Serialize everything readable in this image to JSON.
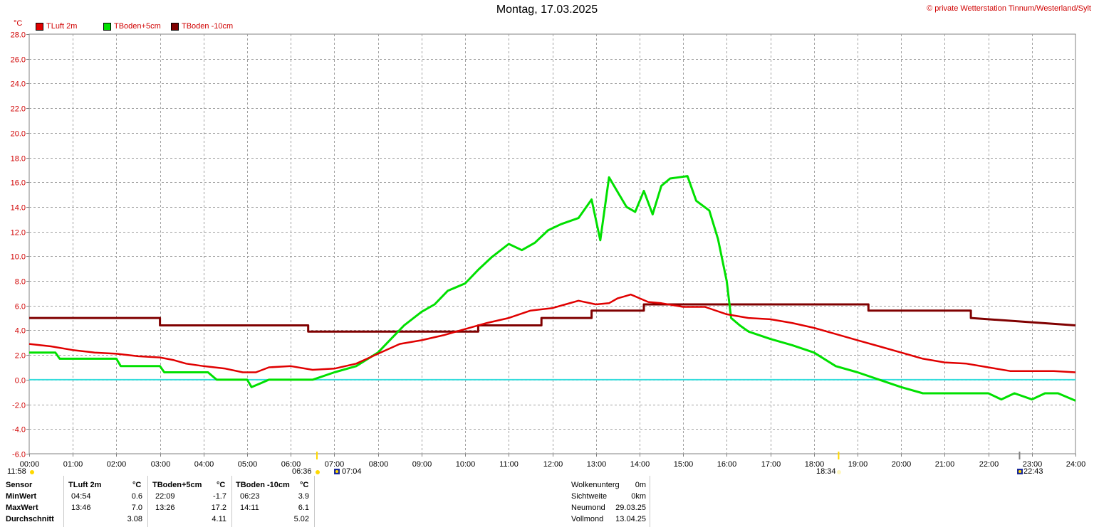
{
  "header": {
    "title": "Montag, 17.03.2025",
    "copyright": "© private Wetterstation Tinnum/Westerland/Sylt",
    "unit": "°C"
  },
  "legend": [
    {
      "label": "TLuft 2m",
      "color": "#e00000"
    },
    {
      "label": "TBoden+5cm",
      "color": "#00e000"
    },
    {
      "label": "TBoden -10cm",
      "color": "#800000"
    }
  ],
  "sun_markers": {
    "moonset": "11:58",
    "sunrise": "06:36",
    "civil_dawn": "07:04",
    "sunset": "18:34",
    "moonrise": "22:43"
  },
  "stats": {
    "sensor_header": "Sensor",
    "row_labels": [
      "MinWert",
      "MaxWert",
      "Durchschnitt"
    ],
    "columns": [
      {
        "name": "TLuft 2m",
        "unit": "°C",
        "min_time": "04:54",
        "min_val": "0.6",
        "max_time": "13:46",
        "max_val": "7.0",
        "avg": "3.08"
      },
      {
        "name": "TBoden+5cm",
        "unit": "°C",
        "min_time": "22:09",
        "min_val": "-1.7",
        "max_time": "13:26",
        "max_val": "17.2",
        "avg": "4.11"
      },
      {
        "name": "TBoden -10cm",
        "unit": "°C",
        "min_time": "06:23",
        "min_val": "3.9",
        "max_time": "14:11",
        "max_val": "6.1",
        "avg": "5.02"
      }
    ],
    "astro": [
      {
        "label": "Wolkenunterg",
        "value": "0m"
      },
      {
        "label": "Sichtweite",
        "value": "0km"
      },
      {
        "label": "Neumond",
        "value": "29.03.25"
      },
      {
        "label": "Vollmond",
        "value": "13.04.25"
      }
    ]
  },
  "chart_data": {
    "type": "line",
    "title": "Montag, 17.03.2025",
    "ylabel": "°C",
    "ylim": [
      -6,
      28
    ],
    "xlim": [
      0,
      24
    ],
    "grid": true,
    "legend_position": "top-left",
    "yticks": [
      "28.0",
      "26.0",
      "24.0",
      "22.0",
      "20.0",
      "18.0",
      "16.0",
      "14.0",
      "12.0",
      "10.0",
      "8.0",
      "6.0",
      "4.0",
      "2.0",
      "0.0",
      "-2.0",
      "-4.0",
      "-6.0"
    ],
    "xticks": [
      "00:00",
      "01:00",
      "02:00",
      "03:00",
      "04:00",
      "05:00",
      "06:00",
      "07:00",
      "08:00",
      "09:00",
      "10:00",
      "11:00",
      "12:00",
      "13:00",
      "14:00",
      "15:00",
      "16:00",
      "17:00",
      "18:00",
      "19:00",
      "20:00",
      "21:00",
      "22:00",
      "23:00",
      "24:00"
    ],
    "series": [
      {
        "name": "TLuft 2m",
        "color": "#e00000",
        "x": [
          0,
          0.5,
          1,
          1.5,
          2,
          2.5,
          3,
          3.3,
          3.6,
          4,
          4.5,
          4.9,
          5.2,
          5.5,
          6,
          6.5,
          7,
          7.5,
          8,
          8.5,
          9,
          9.5,
          10,
          10.5,
          11,
          11.5,
          12,
          12.3,
          12.6,
          13,
          13.3,
          13.5,
          13.7,
          13.8,
          14,
          14.2,
          14.5,
          15,
          15.5,
          16,
          16.5,
          17,
          17.5,
          18,
          18.5,
          19,
          19.5,
          20,
          20.5,
          21,
          21.5,
          22,
          22.5,
          23,
          23.5,
          24
        ],
        "y": [
          2.9,
          2.7,
          2.4,
          2.2,
          2.1,
          1.9,
          1.8,
          1.6,
          1.3,
          1.1,
          0.9,
          0.6,
          0.6,
          1.0,
          1.1,
          0.8,
          0.9,
          1.3,
          2.1,
          2.9,
          3.2,
          3.6,
          4.1,
          4.6,
          5.0,
          5.6,
          5.8,
          6.1,
          6.4,
          6.1,
          6.2,
          6.6,
          6.8,
          6.9,
          6.6,
          6.3,
          6.2,
          5.9,
          5.9,
          5.3,
          5.0,
          4.9,
          4.6,
          4.2,
          3.7,
          3.2,
          2.7,
          2.2,
          1.7,
          1.4,
          1.3,
          1.0,
          0.7,
          0.7,
          0.7,
          0.6
        ]
      },
      {
        "name": "TBoden+5cm",
        "color": "#00e000",
        "x": [
          0,
          0.6,
          0.7,
          1.5,
          2.0,
          2.1,
          3.0,
          3.1,
          3.9,
          4.1,
          4.3,
          4.5,
          5.0,
          5.1,
          5.3,
          5.5,
          6.0,
          6.5,
          7.0,
          7.5,
          8.0,
          8.3,
          8.6,
          9.0,
          9.3,
          9.6,
          10.0,
          10.3,
          10.6,
          11.0,
          11.3,
          11.6,
          11.9,
          12.2,
          12.6,
          12.9,
          13.1,
          13.3,
          13.5,
          13.7,
          13.9,
          14.1,
          14.3,
          14.5,
          14.7,
          14.9,
          15.1,
          15.3,
          15.6,
          15.8,
          16.0,
          16.1,
          16.3,
          16.5,
          17.0,
          17.5,
          18.0,
          18.5,
          19.0,
          19.5,
          20.0,
          20.5,
          21.0,
          21.5,
          22.0,
          22.3,
          22.6,
          23.0,
          23.3,
          23.6,
          24.0
        ],
        "y": [
          2.2,
          2.2,
          1.7,
          1.7,
          1.7,
          1.1,
          1.1,
          0.6,
          0.6,
          0.6,
          0.0,
          0.0,
          0.0,
          -0.6,
          -0.3,
          0.0,
          0.0,
          0.0,
          0.6,
          1.1,
          2.2,
          3.3,
          4.4,
          5.5,
          6.1,
          7.2,
          7.8,
          8.9,
          9.9,
          11.0,
          10.5,
          11.1,
          12.1,
          12.6,
          13.1,
          14.6,
          11.3,
          16.4,
          15.2,
          14.0,
          13.6,
          15.3,
          13.4,
          15.7,
          16.3,
          16.4,
          16.5,
          14.5,
          13.7,
          11.4,
          8.0,
          5.0,
          4.4,
          3.9,
          3.3,
          2.8,
          2.2,
          1.1,
          0.6,
          0.0,
          -0.6,
          -1.1,
          -1.1,
          -1.1,
          -1.1,
          -1.6,
          -1.1,
          -1.6,
          -1.1,
          -1.1,
          -1.7
        ]
      },
      {
        "name": "TBoden -10cm",
        "color": "#800000",
        "x": [
          0,
          3.0,
          3.0,
          6.4,
          6.4,
          10.3,
          10.3,
          11.75,
          11.75,
          12.9,
          12.9,
          14.1,
          14.1,
          19.25,
          19.25,
          21.6,
          21.6,
          24
        ],
        "y": [
          5.0,
          5.0,
          4.4,
          4.4,
          3.9,
          3.9,
          4.4,
          4.4,
          5.0,
          5.0,
          5.6,
          5.6,
          6.1,
          6.1,
          5.6,
          5.6,
          5.0,
          4.4
        ]
      },
      {
        "name": "0",
        "color": "#33dddd",
        "x": [
          0,
          24
        ],
        "y": [
          0,
          0
        ]
      }
    ]
  }
}
